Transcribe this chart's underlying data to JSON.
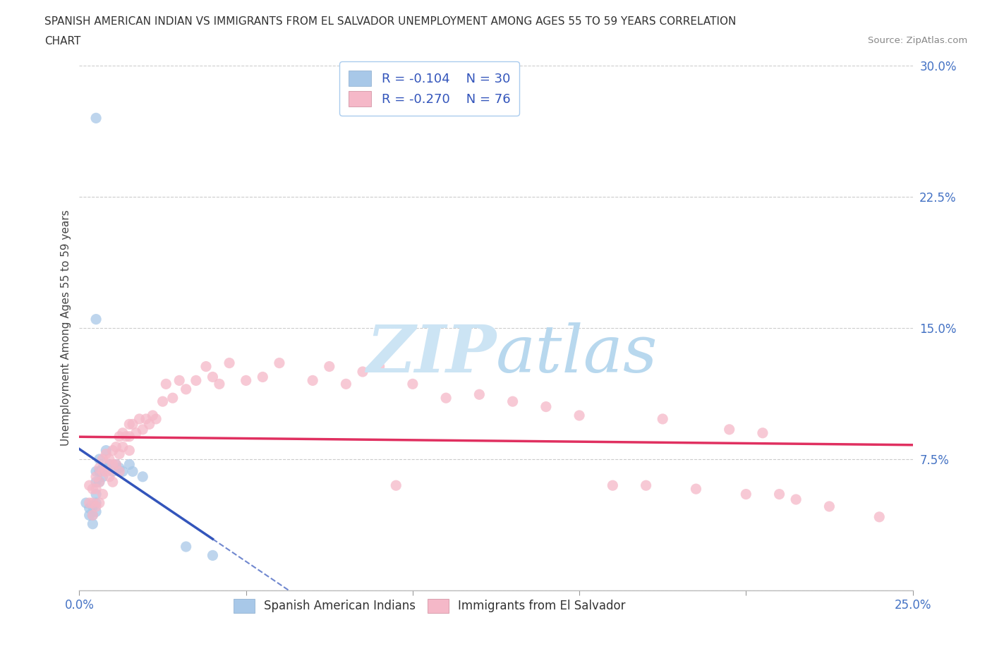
{
  "title_line1": "SPANISH AMERICAN INDIAN VS IMMIGRANTS FROM EL SALVADOR UNEMPLOYMENT AMONG AGES 55 TO 59 YEARS CORRELATION",
  "title_line2": "CHART",
  "source": "Source: ZipAtlas.com",
  "ylabel": "Unemployment Among Ages 55 to 59 years",
  "xlim": [
    0.0,
    0.25
  ],
  "ylim": [
    0.0,
    0.3
  ],
  "grid_color": "#cccccc",
  "background_color": "#ffffff",
  "blue_color": "#a8c8e8",
  "pink_color": "#f5b8c8",
  "blue_line_color": "#3355bb",
  "pink_line_color": "#e03060",
  "label1": "Spanish American Indians",
  "label2": "Immigrants from El Salvador",
  "watermark_zip_color": "#c8e0f0",
  "watermark_atlas_color": "#b0d0e8",
  "blue_x": [
    0.002,
    0.003,
    0.003,
    0.004,
    0.004,
    0.004,
    0.005,
    0.005,
    0.005,
    0.005,
    0.005,
    0.005,
    0.005,
    0.006,
    0.006,
    0.006,
    0.007,
    0.007,
    0.008,
    0.008,
    0.009,
    0.01,
    0.011,
    0.012,
    0.013,
    0.015,
    0.016,
    0.019,
    0.032,
    0.04
  ],
  "blue_y": [
    0.05,
    0.047,
    0.043,
    0.048,
    0.043,
    0.038,
    0.27,
    0.155,
    0.068,
    0.062,
    0.055,
    0.05,
    0.045,
    0.075,
    0.068,
    0.062,
    0.07,
    0.065,
    0.08,
    0.07,
    0.072,
    0.068,
    0.072,
    0.07,
    0.068,
    0.072,
    0.068,
    0.065,
    0.025,
    0.02
  ],
  "pink_x": [
    0.003,
    0.003,
    0.004,
    0.004,
    0.004,
    0.005,
    0.005,
    0.005,
    0.006,
    0.006,
    0.006,
    0.007,
    0.007,
    0.007,
    0.008,
    0.008,
    0.009,
    0.009,
    0.01,
    0.01,
    0.01,
    0.011,
    0.011,
    0.012,
    0.012,
    0.012,
    0.013,
    0.013,
    0.014,
    0.015,
    0.015,
    0.015,
    0.016,
    0.017,
    0.018,
    0.019,
    0.02,
    0.021,
    0.022,
    0.023,
    0.025,
    0.026,
    0.028,
    0.03,
    0.032,
    0.035,
    0.038,
    0.04,
    0.042,
    0.045,
    0.05,
    0.055,
    0.06,
    0.07,
    0.075,
    0.08,
    0.085,
    0.09,
    0.095,
    0.1,
    0.11,
    0.12,
    0.13,
    0.14,
    0.15,
    0.16,
    0.17,
    0.175,
    0.185,
    0.195,
    0.2,
    0.205,
    0.21,
    0.215,
    0.225,
    0.24
  ],
  "pink_y": [
    0.06,
    0.05,
    0.058,
    0.05,
    0.043,
    0.065,
    0.058,
    0.048,
    0.07,
    0.062,
    0.05,
    0.075,
    0.068,
    0.055,
    0.078,
    0.068,
    0.075,
    0.065,
    0.08,
    0.072,
    0.062,
    0.082,
    0.072,
    0.088,
    0.078,
    0.068,
    0.09,
    0.082,
    0.088,
    0.095,
    0.088,
    0.08,
    0.095,
    0.09,
    0.098,
    0.092,
    0.098,
    0.095,
    0.1,
    0.098,
    0.108,
    0.118,
    0.11,
    0.12,
    0.115,
    0.12,
    0.128,
    0.122,
    0.118,
    0.13,
    0.12,
    0.122,
    0.13,
    0.12,
    0.128,
    0.118,
    0.125,
    0.128,
    0.06,
    0.118,
    0.11,
    0.112,
    0.108,
    0.105,
    0.1,
    0.06,
    0.06,
    0.098,
    0.058,
    0.092,
    0.055,
    0.09,
    0.055,
    0.052,
    0.048,
    0.042
  ]
}
